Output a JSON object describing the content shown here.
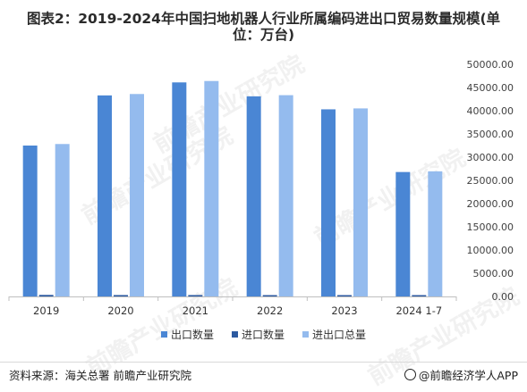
{
  "title_line1": "图表2：2019-2024年中国扫地机器人行业所属编码进出口贸易数量规模(单",
  "title_line2": "位：万台)",
  "source": "资料来源：海关总署 前瞻产业研究院",
  "brand": "@前瞻经济学人APP",
  "watermark": "前瞻产业研究院",
  "chart_data": {
    "type": "bar",
    "categories": [
      "2019",
      "2020",
      "2021",
      "2022",
      "2023",
      "2024 1-7"
    ],
    "series": [
      {
        "name": "出口数量",
        "color": "#4a86d4",
        "values": [
          32500,
          43300,
          46100,
          43100,
          40300,
          26800
        ]
      },
      {
        "name": "进口数量",
        "color": "#2c5aa0",
        "values": [
          330,
          300,
          300,
          250,
          200,
          150
        ]
      },
      {
        "name": "进出口总量",
        "color": "#94bbee",
        "values": [
          32830,
          43600,
          46400,
          43350,
          40500,
          26950
        ]
      }
    ],
    "y_ticks": [
      "0.00",
      "5000.00",
      "10000.00",
      "15000.00",
      "20000.00",
      "25000.00",
      "30000.00",
      "35000.00",
      "40000.00",
      "45000.00",
      "50000.00"
    ],
    "ylim": [
      0,
      50000
    ],
    "y_axis_position": "right",
    "grid": false,
    "legend_position": "bottom"
  }
}
